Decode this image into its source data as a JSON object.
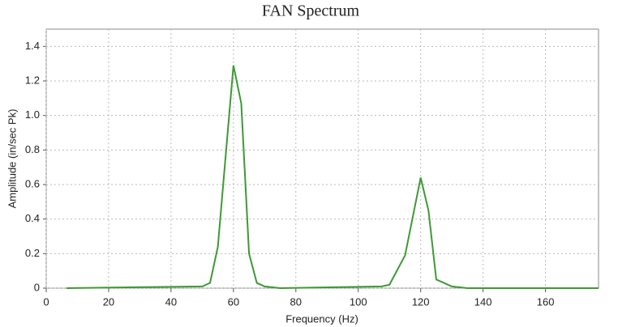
{
  "chart_data": {
    "type": "line",
    "title": "FAN Spectrum",
    "x_label": "Frequency (Hz)",
    "y_label": "Amplitude (in/sec Pk)",
    "x": [
      6.5,
      50,
      52.5,
      55,
      60,
      62.5,
      65,
      67.5,
      70,
      75,
      107.5,
      110,
      115,
      120,
      122.5,
      125,
      130,
      135,
      177
    ],
    "series": [
      {
        "name": "Amplitude",
        "color": "#3c9a34",
        "values": [
          0,
          0.01,
          0.03,
          0.24,
          1.29,
          1.07,
          0.2,
          0.03,
          0.01,
          0,
          0.01,
          0.02,
          0.19,
          0.64,
          0.45,
          0.05,
          0.01,
          0,
          0
        ]
      }
    ],
    "xlim": [
      0,
      177
    ],
    "xticks": [
      0,
      20,
      40,
      60,
      80,
      100,
      120,
      140,
      160
    ],
    "ylim": [
      0,
      1.5
    ],
    "yticks": [
      0,
      0.2,
      0.4,
      0.6,
      0.8,
      {
        "value": 1,
        "label": "1.0"
      },
      1.2,
      1.4
    ],
    "grid": true
  }
}
